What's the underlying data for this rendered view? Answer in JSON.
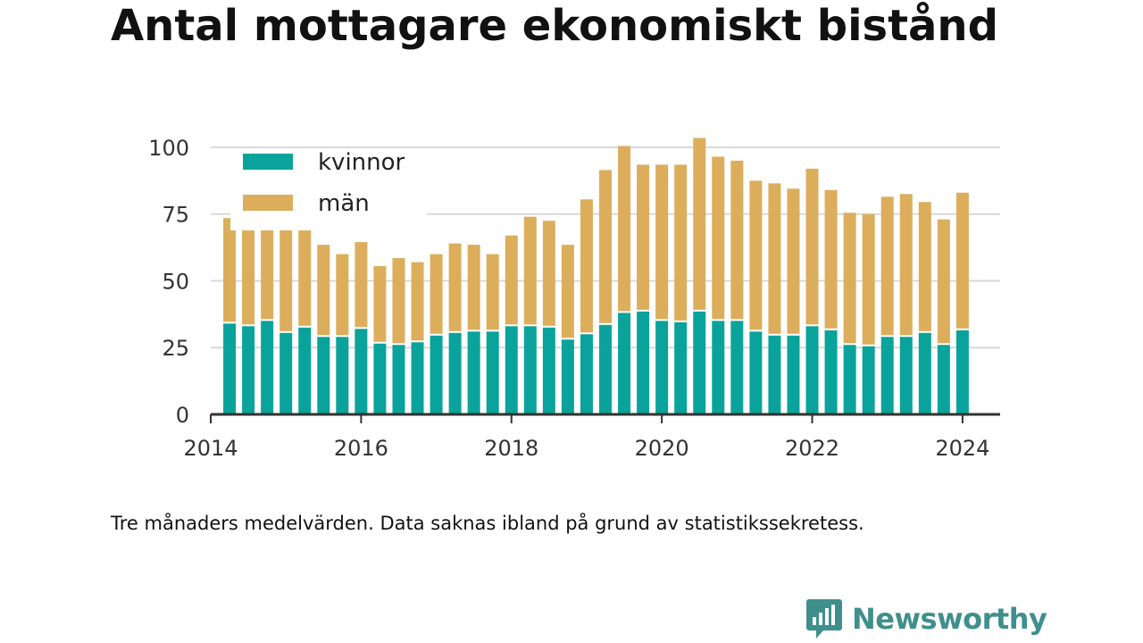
{
  "title": "Antal mottagare ekonomiskt bistånd",
  "caption": "Tre månaders medelvärden. Data saknas ibland på grund av statistikssekretess.",
  "brand": {
    "name": "Newsworthy",
    "color": "#3f8f8c"
  },
  "colors": {
    "kvinnor": "#0aa39b",
    "man": "#dcae5c",
    "grid": "#d9d9d9",
    "axis": "#333333"
  },
  "chart_data": {
    "type": "bar",
    "stacked": true,
    "title": "Antal mottagare ekonomiskt bistånd",
    "xlabel": "",
    "ylabel": "",
    "ylim": [
      0,
      105
    ],
    "xlim": [
      2014,
      2024.5
    ],
    "y_ticks": [
      0,
      25,
      50,
      75,
      100
    ],
    "x_ticks": [
      2014,
      2016,
      2018,
      2020,
      2022,
      2024
    ],
    "grid": true,
    "legend_position": "top-left",
    "x": [
      2014.25,
      2014.5,
      2014.75,
      2015.0,
      2015.25,
      2015.5,
      2015.75,
      2016.0,
      2016.25,
      2016.5,
      2016.75,
      2017.0,
      2017.25,
      2017.5,
      2017.75,
      2018.0,
      2018.25,
      2018.5,
      2018.75,
      2019.0,
      2019.25,
      2019.5,
      2019.75,
      2020.0,
      2020.25,
      2020.5,
      2020.75,
      2021.0,
      2021.25,
      2021.5,
      2021.75,
      2022.0,
      2022.25,
      2022.5,
      2022.75,
      2023.0,
      2023.25,
      2023.5,
      2023.75,
      2024.0
    ],
    "series": [
      {
        "name": "kvinnor",
        "values": [
          34,
          33,
          35,
          30.5,
          32.5,
          29,
          29,
          32,
          26.5,
          26,
          27,
          29.5,
          30.5,
          31,
          31,
          33,
          33,
          32.5,
          28,
          30,
          33.5,
          38,
          38.5,
          35,
          34.5,
          38.5,
          35,
          35,
          31,
          29.5,
          29.5,
          33,
          31.5,
          26,
          25.5,
          29,
          29,
          30.5,
          26,
          31.5
        ]
      },
      {
        "name": "män",
        "values": [
          39.5,
          37,
          39,
          38.5,
          38.5,
          34.5,
          31,
          32.5,
          29,
          32.5,
          30,
          30.5,
          33.5,
          32.5,
          29,
          34,
          41,
          40,
          35.5,
          50.5,
          58,
          62.5,
          55,
          58.5,
          59,
          65,
          61.5,
          60,
          56.5,
          57,
          55,
          59,
          52.5,
          49.5,
          49.5,
          52.5,
          53.5,
          49,
          47,
          51.5
        ]
      }
    ]
  }
}
